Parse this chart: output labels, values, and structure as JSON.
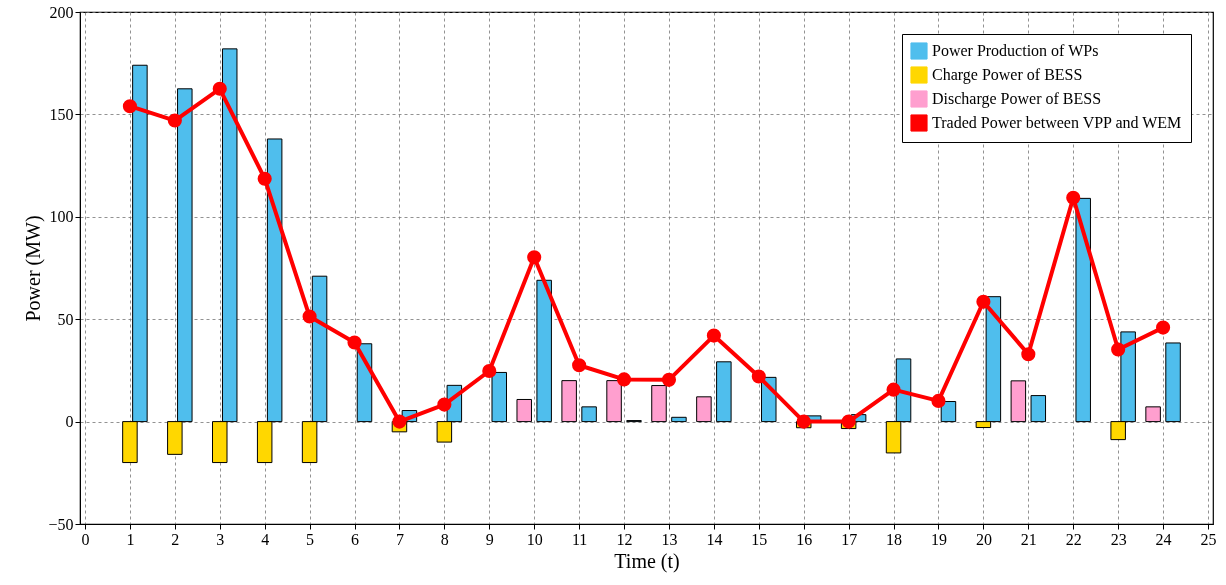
{
  "chart_data": {
    "type": "bar",
    "xlabel": "Time (t)",
    "ylabel": "Power (MW)",
    "x": [
      1,
      2,
      3,
      4,
      5,
      6,
      7,
      8,
      9,
      10,
      11,
      12,
      13,
      14,
      15,
      16,
      17,
      18,
      19,
      20,
      21,
      22,
      23,
      24
    ],
    "xlim": [
      0,
      25
    ],
    "xticks": [
      0,
      1,
      2,
      3,
      4,
      5,
      6,
      7,
      8,
      9,
      10,
      11,
      12,
      13,
      14,
      15,
      16,
      17,
      18,
      19,
      20,
      21,
      22,
      23,
      24,
      25
    ],
    "ylim": [
      -50,
      200
    ],
    "yticks": [
      -50,
      0,
      50,
      100,
      150,
      200
    ],
    "grid": true,
    "legend": "top right",
    "marker": "circle",
    "line_style": "solid",
    "series": [
      {
        "name": "Power Production of WPs",
        "color": "#4fbeed",
        "values": [
          174,
          162.5,
          182,
          138,
          71,
          38,
          5.4,
          17.7,
          24,
          69,
          7.2,
          0.5,
          2.1,
          29.2,
          21.6,
          2.8,
          3.4,
          30.6,
          9.8,
          61,
          12.7,
          109,
          43.8,
          38.4
        ]
      },
      {
        "name": "Charge Power of BESS",
        "color": "#ffd700",
        "values": [
          -20,
          -16,
          -20,
          -20,
          -20,
          null,
          -5,
          -10,
          null,
          null,
          null,
          null,
          null,
          null,
          null,
          -3,
          -3.4,
          -15.3,
          null,
          -2.9,
          null,
          null,
          -8.8,
          null
        ]
      },
      {
        "name": "Discharge Power of BESS",
        "color": "#ff9fcf",
        "values": [
          null,
          null,
          null,
          null,
          null,
          null,
          null,
          null,
          null,
          10.8,
          20,
          20,
          17.6,
          12.1,
          null,
          null,
          null,
          null,
          null,
          null,
          19.9,
          null,
          null,
          7.2
        ]
      },
      {
        "name": "Traded Power between VPP and WEM",
        "type": "line",
        "color": "#ff0000",
        "values": [
          154,
          147,
          162.5,
          118.6,
          51.3,
          38.6,
          0,
          8.3,
          24.7,
          80.2,
          27.5,
          20.6,
          20.4,
          42,
          22,
          0,
          0,
          15.6,
          10.1,
          58.5,
          32.9,
          109.3,
          35.2,
          45.9
        ]
      }
    ]
  }
}
